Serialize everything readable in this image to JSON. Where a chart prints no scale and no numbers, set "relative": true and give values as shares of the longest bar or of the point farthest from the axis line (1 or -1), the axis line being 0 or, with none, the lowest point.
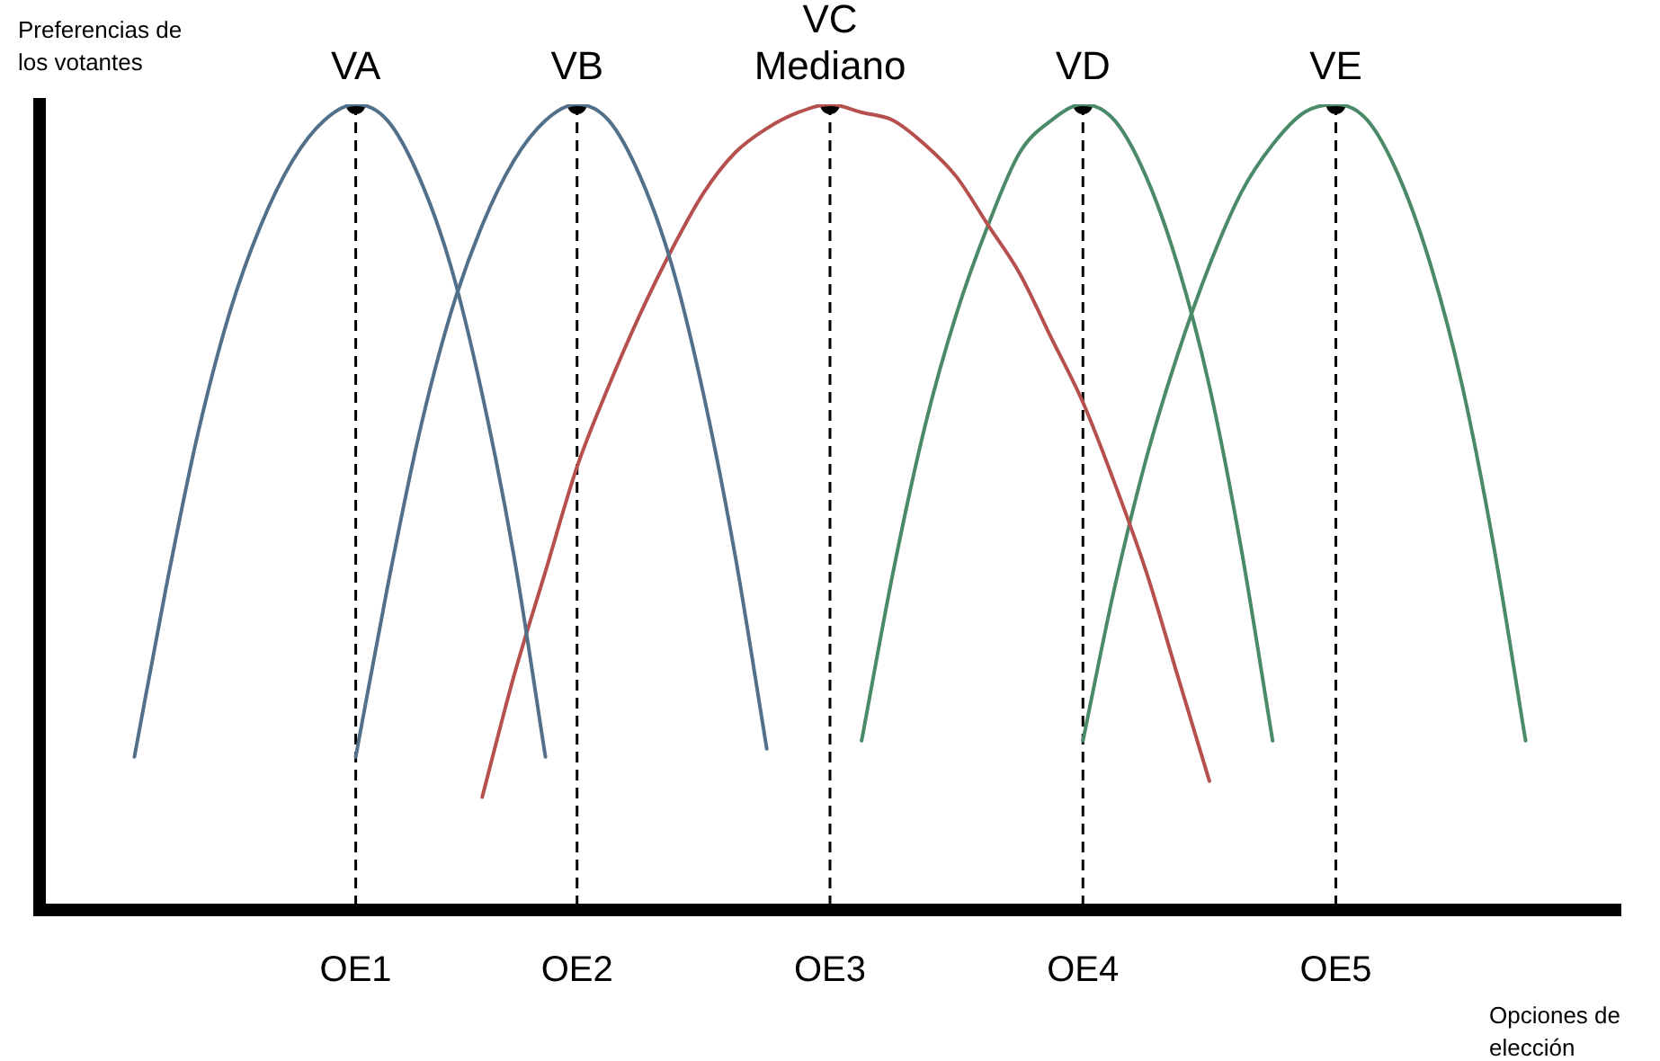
{
  "chart_data": {
    "type": "line",
    "relative": true,
    "xlabel": "Opciones de elección",
    "categories": [
      null,
      null,
      null,
      null,
      null,
      null,
      null,
      null,
      null,
      null,
      "OE1",
      null,
      null,
      null,
      null,
      null,
      null,
      "OE2",
      null,
      null,
      null,
      null,
      null,
      null,
      null,
      "OE3",
      null,
      null,
      null,
      null,
      null,
      null,
      null,
      "OE4",
      null,
      null,
      null,
      null,
      null,
      null,
      null,
      "OE5",
      null,
      null,
      null,
      null,
      null,
      null,
      null,
      null,
      null
    ],
    "tick_labels": "x",
    "grid": false,
    "legend": false,
    "series": [
      {
        "color": "#52708a",
        "marker": "none",
        "line_style": "solid",
        "values": [
          null,
          null,
          null,
          0.19,
          0.4,
          0.59,
          0.74,
          0.85,
          0.93,
          0.98,
          1,
          0.98,
          0.91,
          0.8,
          0.64,
          0.44,
          0.19,
          null,
          null,
          null,
          null,
          null,
          null,
          null,
          null,
          null,
          null,
          null,
          null,
          null,
          null,
          null,
          null,
          null,
          null,
          null,
          null,
          null,
          null,
          null,
          null,
          null,
          null,
          null,
          null,
          null,
          null,
          null,
          null,
          null,
          null
        ]
      },
      {
        "color": "#52708a",
        "marker": "none",
        "line_style": "solid",
        "values": [
          null,
          null,
          null,
          null,
          null,
          null,
          null,
          null,
          null,
          null,
          0.19,
          0.4,
          0.59,
          0.74,
          0.85,
          0.93,
          0.98,
          1,
          0.98,
          0.91,
          0.8,
          0.64,
          0.44,
          0.2,
          null,
          null,
          null,
          null,
          null,
          null,
          null,
          null,
          null,
          null,
          null,
          null,
          null,
          null,
          null,
          null,
          null,
          null,
          null,
          null,
          null,
          null,
          null,
          null,
          null,
          null,
          null
        ]
      },
      {
        "color": "#b5504f",
        "marker": "none",
        "line_style": "solid",
        "values": [
          null,
          null,
          null,
          null,
          null,
          null,
          null,
          null,
          null,
          null,
          null,
          null,
          null,
          null,
          0.14,
          0.29,
          0.42,
          0.55,
          0.65,
          0.74,
          0.82,
          0.89,
          0.94,
          0.97,
          0.99,
          1,
          0.99,
          0.98,
          0.95,
          0.91,
          0.85,
          0.79,
          0.71,
          0.63,
          0.53,
          0.42,
          0.29,
          0.16,
          null,
          null,
          null,
          null,
          null,
          null,
          null,
          null,
          null,
          null,
          null,
          null,
          null
        ]
      },
      {
        "color": "#4a8a68",
        "marker": "none",
        "line_style": "solid",
        "values": [
          null,
          null,
          null,
          null,
          null,
          null,
          null,
          null,
          null,
          null,
          null,
          null,
          null,
          null,
          null,
          null,
          null,
          null,
          null,
          null,
          null,
          null,
          null,
          null,
          null,
          null,
          0.21,
          0.42,
          0.6,
          0.74,
          0.85,
          0.94,
          0.98,
          1,
          0.98,
          0.91,
          0.8,
          0.65,
          0.45,
          0.21,
          null,
          null,
          null,
          null,
          null,
          null,
          null,
          null,
          null,
          null,
          null
        ]
      },
      {
        "color": "#4a8a68",
        "marker": "none",
        "line_style": "solid",
        "values": [
          null,
          null,
          null,
          null,
          null,
          null,
          null,
          null,
          null,
          null,
          null,
          null,
          null,
          null,
          null,
          null,
          null,
          null,
          null,
          null,
          null,
          null,
          null,
          null,
          null,
          null,
          null,
          null,
          null,
          null,
          null,
          null,
          null,
          0.21,
          0.4,
          0.56,
          0.69,
          0.8,
          0.89,
          0.95,
          0.99,
          1,
          0.98,
          0.91,
          0.8,
          0.65,
          0.45,
          0.21,
          null,
          null,
          null
        ]
      },
      {
        "type": "scatter",
        "color": "#000000",
        "marker": "circle",
        "x": [
          "OE1",
          "OE2",
          "OE3",
          "OE4",
          "OE5"
        ],
        "values": [
          1,
          1,
          1,
          1,
          1
        ]
      }
    ],
    "ref_lines": [
      {
        "axis": "x",
        "value": "OE1",
        "color": "#000000",
        "line_style": "dashed"
      },
      {
        "axis": "x",
        "value": "OE2",
        "color": "#000000",
        "line_style": "dashed"
      },
      {
        "axis": "x",
        "value": "OE3",
        "color": "#000000",
        "line_style": "dashed"
      },
      {
        "axis": "x",
        "value": "OE4",
        "color": "#000000",
        "line_style": "dashed"
      },
      {
        "axis": "x",
        "value": "OE5",
        "color": "#000000",
        "line_style": "dashed"
      }
    ],
    "annotations": [
      "Preferencias de los votantes",
      {
        "text": "VA",
        "x": "OE1",
        "y": 1
      },
      {
        "text": "VB",
        "x": "OE2",
        "y": 1
      },
      {
        "text": "VC\nMediano",
        "x": "OE3",
        "y": 1
      },
      {
        "text": "VD",
        "x": "OE4",
        "y": 1
      },
      {
        "text": "VE",
        "x": "OE5",
        "y": 1
      }
    ]
  }
}
